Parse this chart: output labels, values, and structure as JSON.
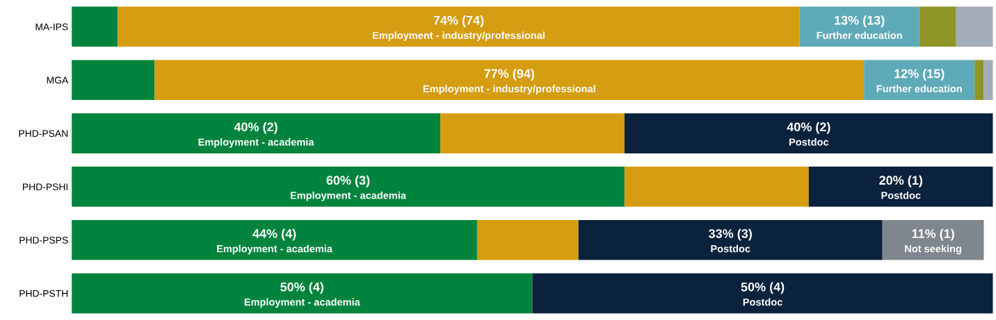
{
  "chart_data": {
    "type": "bar",
    "orientation": "horizontal",
    "stacked": true,
    "tick_labels": "y",
    "grid": false,
    "legend": false,
    "categories": [
      "MA-IPS",
      "MGA",
      "PHD-PSAN",
      "PHD-PSHI",
      "PHD-PSPS",
      "PHD-PSTH"
    ],
    "series": [
      {
        "name": "Employment - academia",
        "color": "#00843d",
        "values": [
          5,
          9,
          40,
          60,
          44,
          50
        ],
        "value_labels": [
          null,
          null,
          "40% (2)",
          "60% (3)",
          "44% (4)",
          "50% (4)"
        ]
      },
      {
        "name": "Employment - industry/professional",
        "color": "#d49d12",
        "values": [
          74,
          77,
          20,
          20,
          11,
          null
        ],
        "value_labels": [
          "74% (74)",
          "77% (94)",
          null,
          null,
          null,
          null
        ]
      },
      {
        "name": "Further education",
        "color": "#5eaab9",
        "values": [
          13,
          12,
          null,
          null,
          null,
          null
        ],
        "value_labels": [
          "13% (13)",
          "12% (15)",
          null,
          null,
          null,
          null
        ]
      },
      {
        "name": "Postdoc",
        "color": "#0b223d",
        "values": [
          null,
          null,
          40,
          20,
          33,
          50
        ],
        "value_labels": [
          null,
          null,
          "40% (2)",
          "20% (1)",
          "33% (3)",
          "50% (4)"
        ]
      },
      {
        "color": "#8f9426",
        "values": [
          4,
          1,
          null,
          null,
          null,
          null
        ]
      },
      {
        "color": "#a3acb9",
        "values": [
          4,
          1,
          null,
          null,
          null,
          null
        ]
      },
      {
        "name": "Not seeking",
        "color": "#7f868e",
        "values": [
          null,
          null,
          null,
          null,
          11,
          null
        ],
        "value_labels": [
          null,
          null,
          null,
          null,
          "11% (1)",
          null
        ]
      }
    ]
  }
}
